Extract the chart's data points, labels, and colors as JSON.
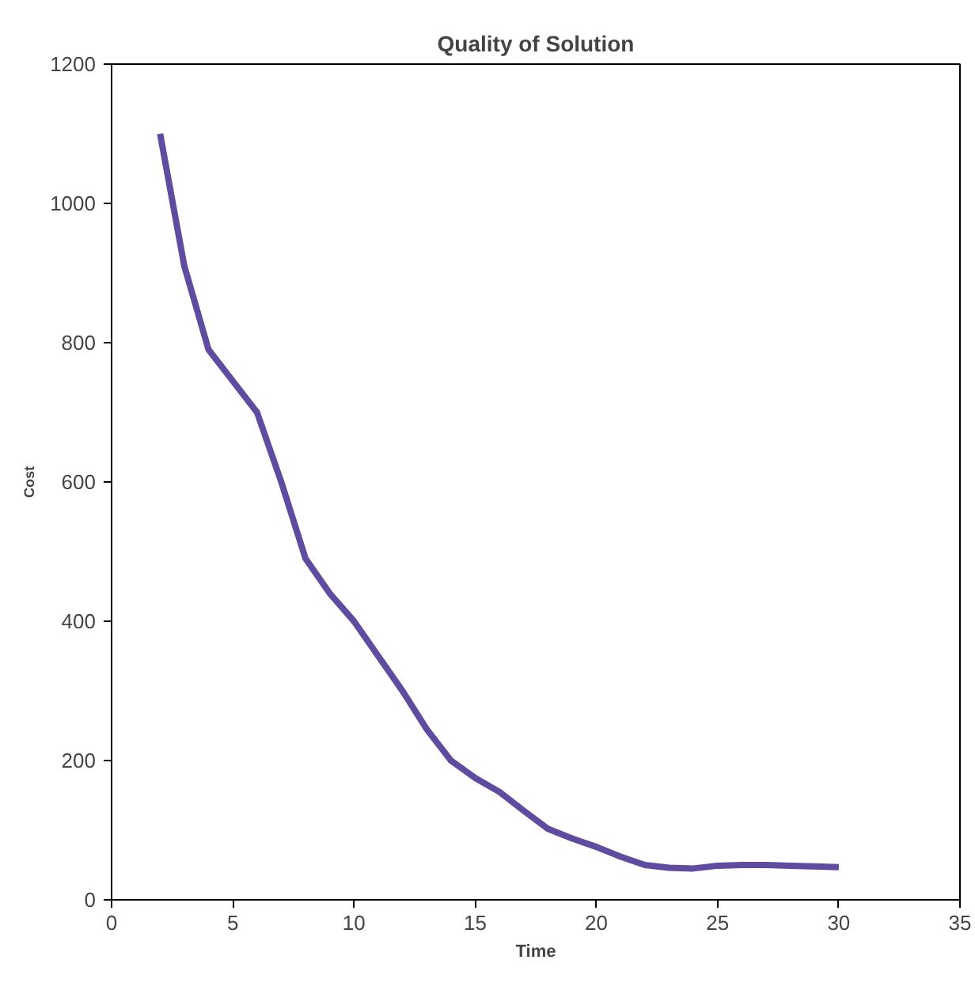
{
  "chart_data": {
    "type": "line",
    "title": "Quality of Solution",
    "xlabel": "Time",
    "ylabel": "Cost",
    "x": [
      2,
      3,
      4,
      5,
      6,
      7,
      8,
      9,
      10,
      11,
      12,
      13,
      14,
      15,
      16,
      17,
      18,
      19,
      20,
      21,
      22,
      23,
      24,
      25,
      26,
      27,
      28,
      29,
      30
    ],
    "series": [
      {
        "color": "#5f4b9f",
        "values": [
          1100,
          910,
          790,
          745,
          700,
          600,
          490,
          440,
          400,
          350,
          300,
          245,
          200,
          175,
          155,
          128,
          102,
          88,
          76,
          62,
          50,
          46,
          45,
          49,
          50,
          50,
          49,
          48,
          47
        ]
      }
    ],
    "xlim": [
      0,
      35
    ],
    "xticks": [
      0,
      5,
      10,
      15,
      20,
      25,
      30,
      35
    ],
    "ylim": [
      0,
      1200
    ],
    "yticks": [
      0,
      200,
      400,
      600,
      800,
      1000,
      1200
    ],
    "marker": "none",
    "line_style": "solid"
  }
}
